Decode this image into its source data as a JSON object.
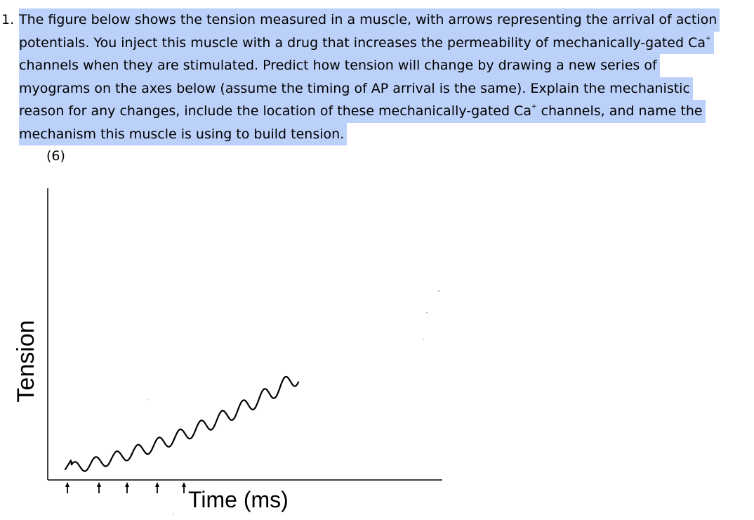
{
  "question": {
    "number": "1.",
    "lines": [
      "The figure below shows the tension measured in a muscle, with arrows representing the arrival of action",
      "potentials. You inject this muscle with a drug that increases the permeability of mechanically-gated Ca",
      "channels when they are stimulated. Predict how tension will change by drawing a new series of",
      "myograms  on the axes below (assume the timing of AP arrival is the same). Explain the mechanistic",
      "reason for any changes, include the location of these mechanically-gated Ca",
      "mechanism this muscle is using to build tension."
    ],
    "sup_line2": "+",
    "sup_line5": "+",
    "line5_tail": " channels, and name the",
    "points": "(6)",
    "highlight_color": "#bcd1f9"
  },
  "figure": {
    "y_axis_label": "Tension",
    "x_axis_label": "Time (ms)",
    "ap_arrow_count": 5,
    "trace_color": "#000000"
  }
}
